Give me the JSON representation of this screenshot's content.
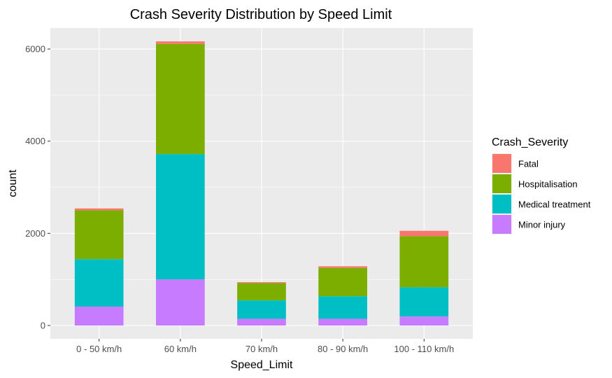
{
  "chart_data": {
    "type": "bar",
    "stacked": true,
    "title": "Crash Severity Distribution by Speed Limit",
    "xlabel": "Speed_Limit",
    "ylabel": "count",
    "ylim": [
      0,
      6400
    ],
    "yticks": [
      0,
      2000,
      4000,
      6000
    ],
    "yticks_labels": [
      "0",
      "2000",
      "4000",
      "6000"
    ],
    "categories": [
      "0 - 50 km/h",
      "60 km/h",
      "70 km/h",
      "80 - 90 km/h",
      "100 - 110 km/h"
    ],
    "series": [
      {
        "name": "Minor injury",
        "color": "#C77CFF",
        "values": [
          410,
          1000,
          145,
          145,
          195
        ]
      },
      {
        "name": "Medical treatment",
        "color": "#00BFC4",
        "values": [
          1030,
          2720,
          400,
          490,
          635
        ]
      },
      {
        "name": "Hospitalisation",
        "color": "#7CAE00",
        "values": [
          1060,
          2390,
          375,
          615,
          1110
        ]
      },
      {
        "name": "Fatal",
        "color": "#F8766D",
        "values": [
          40,
          55,
          20,
          35,
          115
        ]
      }
    ],
    "legend": {
      "title": "Crash_Severity",
      "position": "right",
      "order": [
        "Fatal",
        "Hospitalisation",
        "Medical treatment",
        "Minor injury"
      ]
    },
    "grid": true,
    "panel_background": "#EBEBEB",
    "grid_color": "#FFFFFF"
  }
}
